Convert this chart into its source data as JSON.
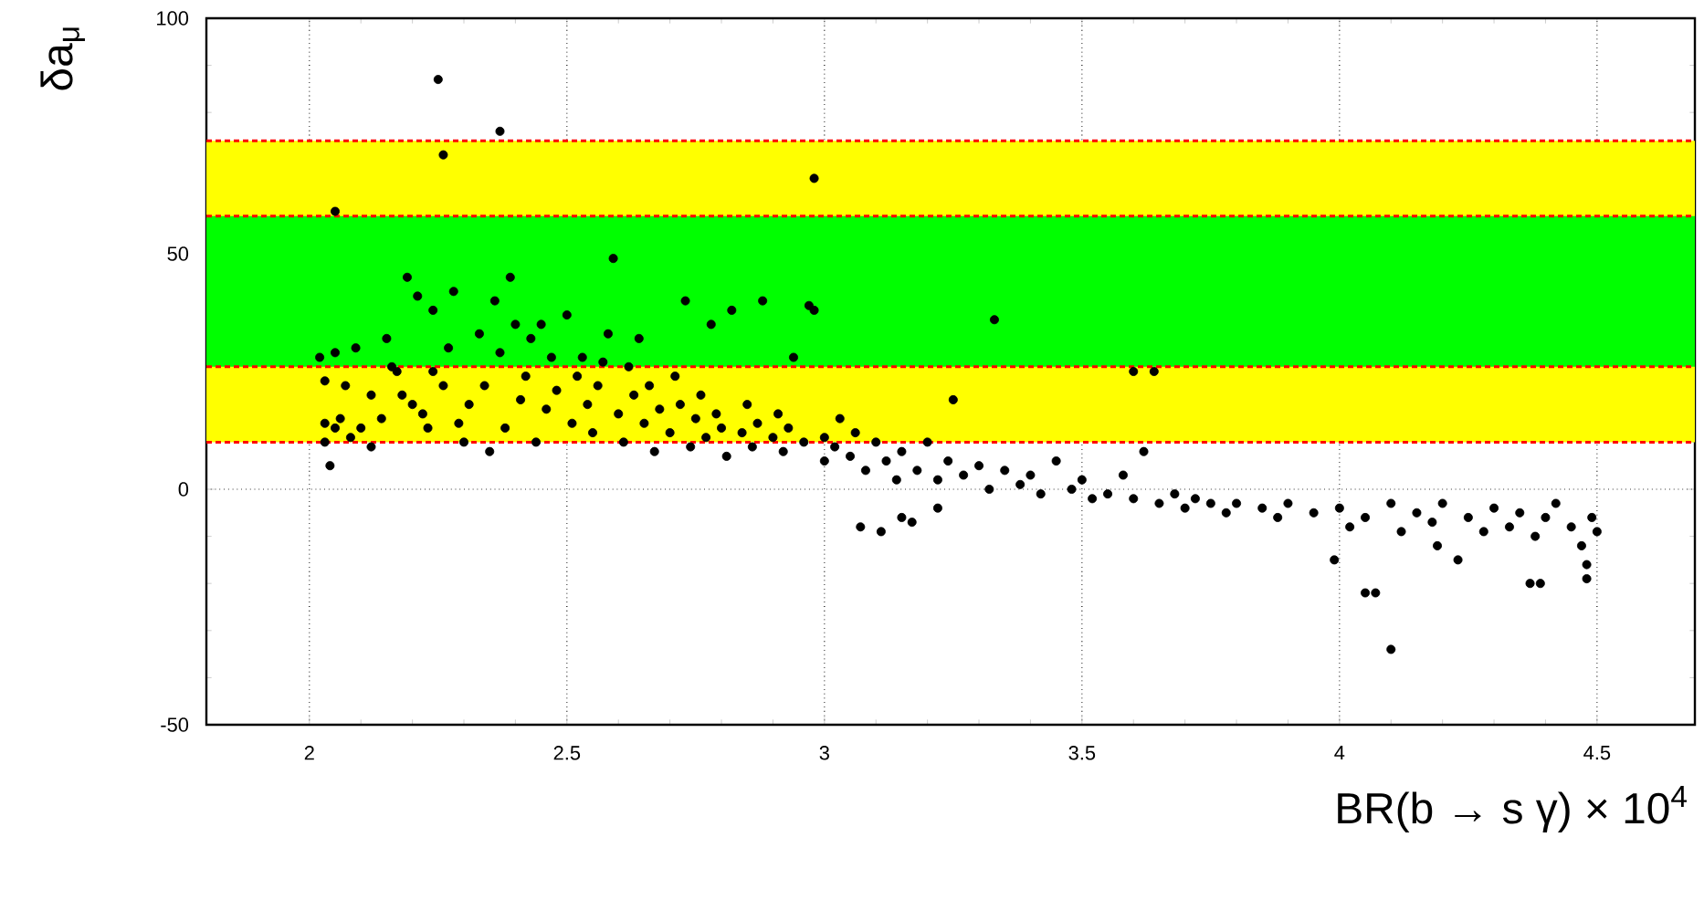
{
  "chart_data": {
    "type": "scatter",
    "xlabel": "BR(b → s γ) × 10$^{4}$",
    "ylabel": "δa$_{μ}$",
    "xlim": [
      1.8,
      4.69
    ],
    "ylim": [
      -50,
      100
    ],
    "xticks": [
      2,
      2.5,
      3,
      3.5,
      4,
      4.5
    ],
    "yticks": [
      -50,
      0,
      50,
      100
    ],
    "grid": true,
    "marker": "circle",
    "bands": [
      {
        "axis": "y",
        "from": 10,
        "to": 74,
        "color": "#ffff00"
      },
      {
        "axis": "y",
        "from": 26,
        "to": 58,
        "color": "#00ff00"
      }
    ],
    "ref_lines": [
      {
        "axis": "y",
        "value": 10,
        "color": "#ff0000",
        "line_style": "dashed"
      },
      {
        "axis": "y",
        "value": 26,
        "color": "#ff0000",
        "line_style": "dashed"
      },
      {
        "axis": "y",
        "value": 58,
        "color": "#ff0000",
        "line_style": "dashed"
      },
      {
        "axis": "y",
        "value": 74,
        "color": "#ff0000",
        "line_style": "dashed"
      }
    ],
    "series": [
      {
        "color": "#000000",
        "x": [
          2.02,
          2.03,
          2.04,
          2.03,
          2.05,
          2.06,
          2.03,
          2.05,
          2.07,
          2.08,
          2.09,
          2.1,
          2.12,
          2.12,
          2.14,
          2.15,
          2.16,
          2.17,
          2.18,
          2.19,
          2.2,
          2.21,
          2.22,
          2.23,
          2.24,
          2.24,
          2.26,
          2.27,
          2.28,
          2.29,
          2.3,
          2.31,
          2.33,
          2.34,
          2.35,
          2.36,
          2.37,
          2.38,
          2.39,
          2.4,
          2.41,
          2.42,
          2.43,
          2.44,
          2.45,
          2.46,
          2.47,
          2.48,
          2.5,
          2.51,
          2.52,
          2.53,
          2.54,
          2.55,
          2.56,
          2.57,
          2.58,
          2.6,
          2.61,
          2.62,
          2.63,
          2.64,
          2.65,
          2.66,
          2.67,
          2.68,
          2.7,
          2.71,
          2.72,
          2.73,
          2.74,
          2.75,
          2.76,
          2.77,
          2.78,
          2.79,
          2.8,
          2.81,
          2.82,
          2.84,
          2.85,
          2.86,
          2.87,
          2.88,
          2.9,
          2.91,
          2.92,
          2.93,
          2.94,
          2.96,
          2.97,
          2.98,
          3.0,
          3.0,
          3.02,
          3.03,
          3.05,
          3.06,
          3.08,
          3.1,
          3.12,
          3.14,
          3.15,
          3.18,
          3.2,
          3.22,
          3.24,
          3.25,
          3.27,
          3.3,
          3.32,
          3.35,
          3.38,
          3.4,
          3.42,
          3.45,
          3.48,
          3.5,
          3.52,
          3.55,
          3.58,
          3.6,
          3.62,
          3.65,
          3.68,
          3.7,
          3.72,
          3.75,
          3.78,
          3.8,
          3.85,
          3.88,
          3.9,
          3.95,
          4.0,
          4.02,
          4.05,
          4.1,
          4.12,
          4.15,
          4.18,
          4.2,
          4.25,
          4.28,
          4.3,
          4.33,
          4.35,
          4.38,
          4.4,
          4.42,
          4.45,
          4.47,
          4.49,
          4.5,
          2.25,
          2.26,
          2.37,
          2.98,
          2.05,
          2.59,
          3.33,
          3.6,
          3.64,
          3.07,
          3.11,
          3.15,
          3.17,
          3.22,
          4.05,
          4.07,
          4.1,
          4.19,
          4.23,
          4.37,
          4.39,
          4.48,
          4.48,
          3.99
        ],
        "values": [
          28,
          23,
          5,
          14,
          13,
          15,
          10,
          29,
          22,
          11,
          30,
          13,
          9,
          20,
          15,
          32,
          26,
          25,
          20,
          45,
          18,
          41,
          16,
          13,
          38,
          25,
          22,
          30,
          42,
          14,
          10,
          18,
          33,
          22,
          8,
          40,
          29,
          13,
          45,
          35,
          19,
          24,
          32,
          10,
          35,
          17,
          28,
          21,
          37,
          14,
          24,
          28,
          18,
          12,
          22,
          27,
          33,
          16,
          10,
          26,
          20,
          32,
          14,
          22,
          8,
          17,
          12,
          24,
          18,
          40,
          9,
          15,
          20,
          11,
          35,
          16,
          13,
          7,
          38,
          12,
          18,
          9,
          14,
          40,
          11,
          16,
          8,
          13,
          28,
          10,
          39,
          38,
          6,
          11,
          9,
          15,
          7,
          12,
          4,
          10,
          6,
          2,
          8,
          4,
          10,
          2,
          6,
          19,
          3,
          5,
          0,
          4,
          1,
          3,
          -1,
          6,
          0,
          2,
          -2,
          -1,
          3,
          -2,
          8,
          -3,
          -1,
          -4,
          -2,
          -3,
          -5,
          -3,
          -4,
          -6,
          -3,
          -5,
          -4,
          -8,
          -6,
          -3,
          -9,
          -5,
          -7,
          -3,
          -6,
          -9,
          -4,
          -8,
          -5,
          -10,
          -6,
          -3,
          -8,
          -12,
          -6,
          -9,
          87,
          71,
          76,
          66,
          59,
          49,
          36,
          25,
          25,
          -8,
          -9,
          -6,
          -7,
          -4,
          -22,
          -22,
          -34,
          -12,
          -15,
          -20,
          -20,
          -19,
          -16,
          -15
        ]
      }
    ]
  }
}
